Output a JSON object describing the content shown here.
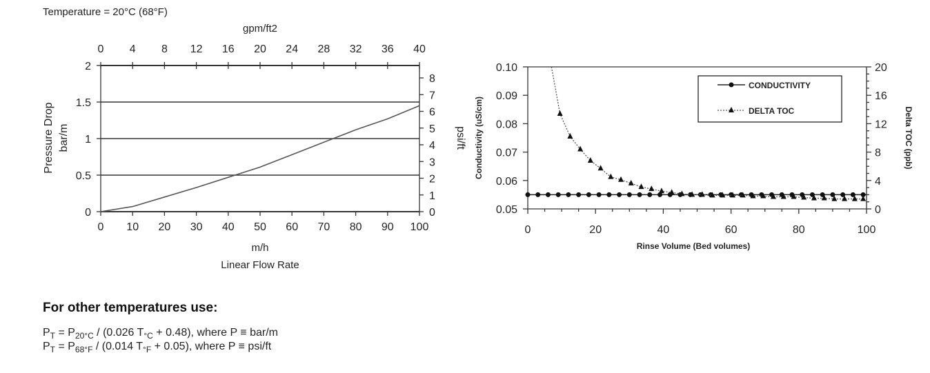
{
  "chart_data": [
    {
      "type": "line",
      "title": "Temperature = 20°C (68°F)",
      "xlabel": "m/h",
      "xlabel2": "Linear Flow Rate",
      "x2label": "gpm/ft2",
      "ylabel": "Pressure Drop",
      "ylabel2": "bar/m",
      "y2label": "psi/ft",
      "xlim": [
        0,
        100
      ],
      "ylim": [
        0,
        2
      ],
      "x2lim": [
        0,
        40
      ],
      "y2lim": [
        0,
        8.84
      ],
      "xticks": [
        "0",
        "10",
        "20",
        "30",
        "40",
        "50",
        "60",
        "70",
        "80",
        "90",
        "100"
      ],
      "x2ticks": [
        "0",
        "4",
        "8",
        "12",
        "16",
        "20",
        "24",
        "28",
        "32",
        "36",
        "40"
      ],
      "yticks": [
        "0",
        "0.5",
        "1",
        "1.5",
        "2"
      ],
      "y2ticks": [
        "0",
        "1",
        "2",
        "3",
        "4",
        "5",
        "6",
        "7",
        "8"
      ],
      "grid": "horizontal",
      "series": [
        {
          "name": "Pressure drop",
          "x": [
            0,
            10,
            20,
            30,
            40,
            50,
            60,
            70,
            80,
            90,
            100
          ],
          "y": [
            0,
            0.07,
            0.2,
            0.33,
            0.47,
            0.61,
            0.78,
            0.95,
            1.12,
            1.27,
            1.45
          ]
        }
      ]
    },
    {
      "type": "line",
      "xlabel": "Rinse Volume (Bed volumes)",
      "ylabel": "Conductivity  (uS/cm)",
      "y2label": "Delta TOC  (ppb)",
      "xlim": [
        0,
        100
      ],
      "ylim": [
        0.05,
        0.1
      ],
      "y2lim": [
        0,
        20
      ],
      "xticks": [
        "0",
        "20",
        "40",
        "60",
        "80",
        "100"
      ],
      "yticks": [
        "0.05",
        "0.06",
        "0.07",
        "0.08",
        "0.09",
        "0.10"
      ],
      "y2ticks": [
        "0",
        "4",
        "8",
        "12",
        "16",
        "20"
      ],
      "legend": "top-right",
      "series": [
        {
          "name": "CONDUCTIVITY",
          "axis": "left",
          "x": [
            0,
            3,
            6,
            9,
            12,
            15,
            18,
            21,
            24,
            27,
            30,
            33,
            36,
            39,
            42,
            45,
            48,
            51,
            54,
            57,
            60,
            63,
            66,
            69,
            72,
            75,
            78,
            81,
            84,
            87,
            90,
            93,
            96,
            99
          ],
          "y": [
            0.055,
            0.055,
            0.055,
            0.055,
            0.055,
            0.055,
            0.055,
            0.055,
            0.055,
            0.055,
            0.055,
            0.055,
            0.055,
            0.055,
            0.055,
            0.055,
            0.055,
            0.055,
            0.055,
            0.055,
            0.055,
            0.055,
            0.055,
            0.055,
            0.055,
            0.055,
            0.055,
            0.055,
            0.055,
            0.055,
            0.055,
            0.055,
            0.055,
            0.055
          ]
        },
        {
          "name": "DELTA TOC",
          "axis": "right",
          "x": [
            9.5,
            12.5,
            15.5,
            18.5,
            21.5,
            24.5,
            27.5,
            30.5,
            33.5,
            36.5,
            39.5,
            42.5,
            45.5,
            48.5,
            51.5,
            54.5,
            57.5,
            60.5,
            63.5,
            66.5,
            69.5,
            72.5,
            75.5,
            78.5,
            81.5,
            84.5,
            87.5,
            90.5,
            93.5,
            96.5,
            99
          ],
          "y": [
            13.4,
            10.2,
            8.4,
            6.8,
            5.7,
            4.5,
            4.1,
            3.6,
            3.1,
            2.8,
            2.5,
            2.3,
            2.1,
            2.0,
            2.0,
            1.9,
            1.9,
            1.9,
            1.9,
            1.8,
            1.8,
            1.7,
            1.7,
            1.7,
            1.6,
            1.5,
            1.5,
            1.4,
            1.4,
            1.4,
            1.4
          ],
          "curve_start": [
            7,
            20
          ]
        }
      ]
    }
  ],
  "notes": {
    "heading": "For other temperatures use:",
    "f1": {
      "a": "P",
      "a_sub": "T",
      "b": " = P",
      "b_sub": "20°C",
      "c": " / (0.026 T",
      "c_sub": "°C",
      "d": " + 0.48), where P ≡ bar/m"
    },
    "f2": {
      "a": "P",
      "a_sub": "T",
      "b": " = P",
      "b_sub": "68°F",
      "c": " / (0.014 T",
      "c_sub": "°F",
      "d": " + 0.05), where P ≡ psi/ft"
    }
  }
}
